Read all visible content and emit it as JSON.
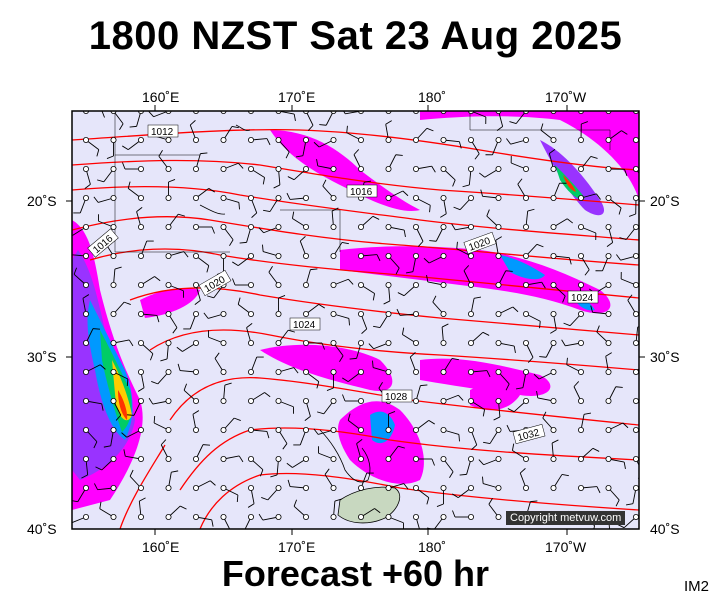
{
  "header": {
    "title": "1800 NZST Sat 23 Aug 2025"
  },
  "footer": {
    "forecast": "Forecast +60 hr",
    "code": "IM2",
    "copyright": "Copyright metvuw.com"
  },
  "map": {
    "lon_labels": [
      "160˚E",
      "170˚E",
      "180˚",
      "170˚W"
    ],
    "lat_labels": [
      "20˚S",
      "30˚S",
      "40˚S"
    ],
    "isobar_labels": [
      "1012",
      "1016",
      "1016",
      "1020",
      "1020",
      "1024",
      "1024",
      "1028",
      "1032"
    ],
    "colors": {
      "background": "#e6e6fa",
      "isobar": "#ff0000",
      "rain_light": "#ff00ff",
      "rain_heavy": "#0000ff"
    }
  }
}
